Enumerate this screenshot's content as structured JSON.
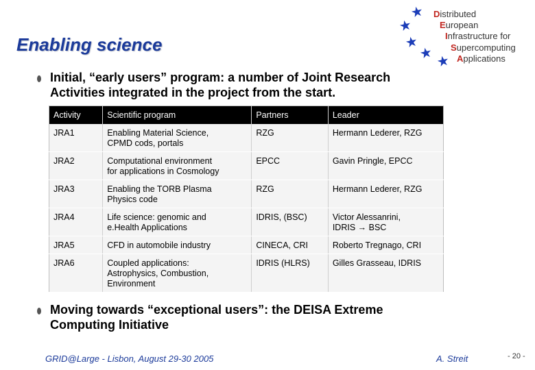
{
  "slide": {
    "title": "Enabling science",
    "bullets": [
      "Initial, “early users” program: a number of Joint Research Activities integrated in the project from the start.",
      "Moving towards “exceptional users”: the DEISA Extreme Computing Initiative"
    ]
  },
  "logo": {
    "lines": [
      {
        "cap": "D",
        "rest": "istributed"
      },
      {
        "cap": "E",
        "rest": "uropean"
      },
      {
        "cap": "I",
        "rest": "nfrastructure for"
      },
      {
        "cap": "S",
        "rest": "upercomputing"
      },
      {
        "cap": "A",
        "rest": "pplications"
      }
    ],
    "star_color": "#1c3db8"
  },
  "table": {
    "headers": [
      "Activity",
      "Scientific program",
      "Partners",
      "Leader"
    ],
    "rows": [
      {
        "activity": "JRA1",
        "program": [
          "Enabling Material Science,",
          "CPMD cods, portals"
        ],
        "partners": "RZG",
        "leader": [
          "Hermann Lederer, RZG"
        ]
      },
      {
        "activity": "JRA2",
        "program": [
          "Computational environment",
          "for applications in Cosmology"
        ],
        "partners": "EPCC",
        "leader": [
          "Gavin Pringle, EPCC"
        ]
      },
      {
        "activity": "JRA3",
        "program": [
          "Enabling the TORB Plasma",
          "Physics code"
        ],
        "partners": "RZG",
        "leader": [
          "Hermann Lederer, RZG"
        ]
      },
      {
        "activity": "JRA4",
        "program": [
          "Life science: genomic and",
          "e.Health Applications"
        ],
        "partners": "IDRIS, (BSC)",
        "leader": [
          "Victor Alessanrini,",
          "IDRIS",
          "BSC"
        ]
      },
      {
        "activity": "JRA5",
        "program": [
          "CFD in automobile industry"
        ],
        "partners": "CINECA, CRI",
        "leader": [
          "Roberto Tregnago, CRI"
        ]
      },
      {
        "activity": "JRA6",
        "program": [
          "Coupled applications:",
          "Astrophysics, Combustion,",
          "Environment"
        ],
        "partners": "IDRIS (HLRS)",
        "leader": [
          "Gilles Grasseau, IDRIS"
        ]
      }
    ]
  },
  "footer": {
    "event": "GRID@Large - Lisbon, August 29-30 2005",
    "author": "A. Streit",
    "page": "- 20 -"
  },
  "colors": {
    "title": "#1b3a9a",
    "header_bg": "#000000",
    "cell_bg": "#f4f4f4",
    "logo_capital": "#c0261f"
  }
}
